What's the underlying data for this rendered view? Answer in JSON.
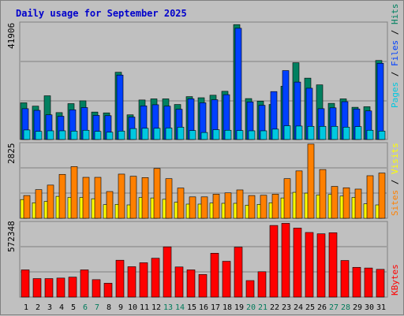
{
  "title": "Daily usage for September 2025",
  "colors": {
    "pages": "#00c8e0",
    "files": "#0040ff",
    "hits": "#008060",
    "visits": "#ffff00",
    "sites": "#ff8000",
    "kbytes": "#ff0000",
    "weekday_label": "#000000",
    "weekend_label": "#007a5a"
  },
  "chart_data": [
    {
      "type": "bar",
      "name": "hits-files-pages",
      "ymax_label": "41906",
      "ylim": [
        0,
        41906
      ],
      "legend": [
        "Pages",
        "Files",
        "Hits"
      ],
      "series": [
        {
          "name": "Hits",
          "values": [
            13100,
            11900,
            15600,
            9600,
            12800,
            13800,
            9800,
            9500,
            24000,
            8800,
            14100,
            14500,
            14500,
            12500,
            15300,
            14900,
            15800,
            17200,
            41000,
            14600,
            13700,
            12500,
            19000,
            27400,
            21900,
            19500,
            12900,
            14500,
            11500,
            11700,
            28200
          ]
        },
        {
          "name": "Files",
          "values": [
            11000,
            10400,
            8800,
            8300,
            10600,
            11400,
            8600,
            8500,
            23000,
            8000,
            12000,
            12400,
            11900,
            10800,
            14500,
            13100,
            14200,
            16000,
            39700,
            13400,
            12200,
            17100,
            24600,
            20500,
            18300,
            11000,
            11300,
            13500,
            10900,
            10200,
            27200
          ]
        },
        {
          "name": "Pages",
          "values": [
            3400,
            2900,
            3100,
            3100,
            3000,
            3300,
            2900,
            2600,
            3000,
            3900,
            4000,
            4000,
            4100,
            4400,
            3200,
            2500,
            3500,
            3300,
            3200,
            3100,
            3100,
            3700,
            4900,
            4800,
            4700,
            4700,
            4700,
            4400,
            4600,
            3300,
            3000
          ]
        }
      ]
    },
    {
      "type": "bar",
      "name": "visits-sites",
      "ymax_label": "2825",
      "ylim": [
        0,
        2825
      ],
      "legend": [
        "Sites",
        "Visits"
      ],
      "series": [
        {
          "name": "Sites",
          "values": [
            850,
            1070,
            1240,
            1640,
            1930,
            1530,
            1530,
            1000,
            1650,
            1570,
            1520,
            1860,
            1480,
            1130,
            800,
            800,
            900,
            950,
            1060,
            850,
            860,
            900,
            1480,
            1770,
            2770,
            1820,
            1190,
            1140,
            1090,
            1590,
            1690
          ]
        },
        {
          "name": "Visits",
          "values": [
            700,
            580,
            630,
            820,
            780,
            780,
            730,
            510,
            520,
            500,
            780,
            760,
            710,
            600,
            530,
            530,
            570,
            560,
            560,
            490,
            520,
            580,
            760,
            970,
            940,
            870,
            890,
            830,
            780,
            540,
            500
          ]
        }
      ]
    },
    {
      "type": "bar",
      "name": "kbytes",
      "ymax_label": "572348",
      "ylim": [
        0,
        572348
      ],
      "legend": [
        "KBytes"
      ],
      "series": [
        {
          "name": "KBytes",
          "values": [
            206000,
            140000,
            140000,
            144000,
            151000,
            206000,
            132000,
            105000,
            279000,
            230000,
            260000,
            294000,
            380000,
            228000,
            206000,
            171000,
            332000,
            271000,
            378000,
            125000,
            192000,
            542000,
            558000,
            522000,
            489000,
            479000,
            487000,
            277000,
            225000,
            220000,
            210000
          ]
        }
      ]
    }
  ],
  "days": [
    {
      "label": "1",
      "weekend": false
    },
    {
      "label": "2",
      "weekend": false
    },
    {
      "label": "3",
      "weekend": false
    },
    {
      "label": "4",
      "weekend": false
    },
    {
      "label": "5",
      "weekend": false
    },
    {
      "label": "6",
      "weekend": true
    },
    {
      "label": "7",
      "weekend": true
    },
    {
      "label": "8",
      "weekend": false
    },
    {
      "label": "9",
      "weekend": false
    },
    {
      "label": "10",
      "weekend": false
    },
    {
      "label": "11",
      "weekend": false
    },
    {
      "label": "12",
      "weekend": false
    },
    {
      "label": "13",
      "weekend": true
    },
    {
      "label": "14",
      "weekend": true
    },
    {
      "label": "15",
      "weekend": false
    },
    {
      "label": "16",
      "weekend": false
    },
    {
      "label": "17",
      "weekend": false
    },
    {
      "label": "18",
      "weekend": false
    },
    {
      "label": "19",
      "weekend": false
    },
    {
      "label": "20",
      "weekend": true
    },
    {
      "label": "21",
      "weekend": true
    },
    {
      "label": "22",
      "weekend": false
    },
    {
      "label": "23",
      "weekend": false
    },
    {
      "label": "24",
      "weekend": false
    },
    {
      "label": "25",
      "weekend": false
    },
    {
      "label": "26",
      "weekend": false
    },
    {
      "label": "27",
      "weekend": true
    },
    {
      "label": "28",
      "weekend": true
    },
    {
      "label": "29",
      "weekend": false
    },
    {
      "label": "30",
      "weekend": false
    },
    {
      "label": "31",
      "weekend": false
    }
  ],
  "right_legend": {
    "top": [
      {
        "text": "Pages",
        "color_key": "pages"
      },
      {
        "text": " / ",
        "color_key": "weekday_label"
      },
      {
        "text": "Files",
        "color_key": "files"
      },
      {
        "text": " / ",
        "color_key": "weekday_label"
      },
      {
        "text": "Hits",
        "color_key": "hits"
      }
    ],
    "mid": [
      {
        "text": "Sites",
        "color_key": "sites"
      },
      {
        "text": " / ",
        "color_key": "weekday_label"
      },
      {
        "text": "Visits",
        "color_key": "visits"
      }
    ],
    "bottom": [
      {
        "text": "KBytes",
        "color_key": "kbytes"
      }
    ]
  }
}
